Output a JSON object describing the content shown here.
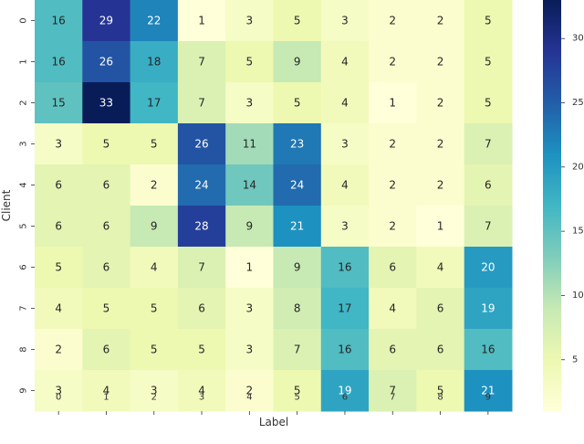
{
  "chart_data": {
    "type": "heatmap",
    "xlabel": "Label",
    "ylabel": "Client",
    "x_categories": [
      "0",
      "1",
      "2",
      "3",
      "4",
      "5",
      "6",
      "7",
      "8",
      "9"
    ],
    "y_categories": [
      "0",
      "1",
      "2",
      "3",
      "4",
      "5",
      "6",
      "7",
      "8",
      "9"
    ],
    "values": [
      [
        16,
        29,
        22,
        1,
        3,
        5,
        3,
        2,
        2,
        5
      ],
      [
        16,
        26,
        18,
        7,
        5,
        9,
        4,
        2,
        2,
        5
      ],
      [
        15,
        33,
        17,
        7,
        3,
        5,
        4,
        1,
        2,
        5
      ],
      [
        3,
        5,
        5,
        26,
        11,
        23,
        3,
        2,
        2,
        7
      ],
      [
        6,
        6,
        2,
        24,
        14,
        24,
        4,
        2,
        2,
        6
      ],
      [
        6,
        6,
        9,
        28,
        9,
        21,
        3,
        2,
        1,
        7
      ],
      [
        5,
        6,
        4,
        7,
        1,
        9,
        16,
        6,
        4,
        20
      ],
      [
        4,
        5,
        5,
        6,
        3,
        8,
        17,
        4,
        6,
        19
      ],
      [
        2,
        6,
        5,
        5,
        3,
        7,
        16,
        6,
        6,
        16
      ],
      [
        3,
        4,
        3,
        4,
        2,
        5,
        19,
        7,
        5,
        21
      ]
    ],
    "colorscale": "YlGnBu",
    "vmin": 1,
    "vmax": 33,
    "colorbar_ticks": [
      5,
      10,
      15,
      20,
      25,
      30
    ],
    "grid": false
  }
}
